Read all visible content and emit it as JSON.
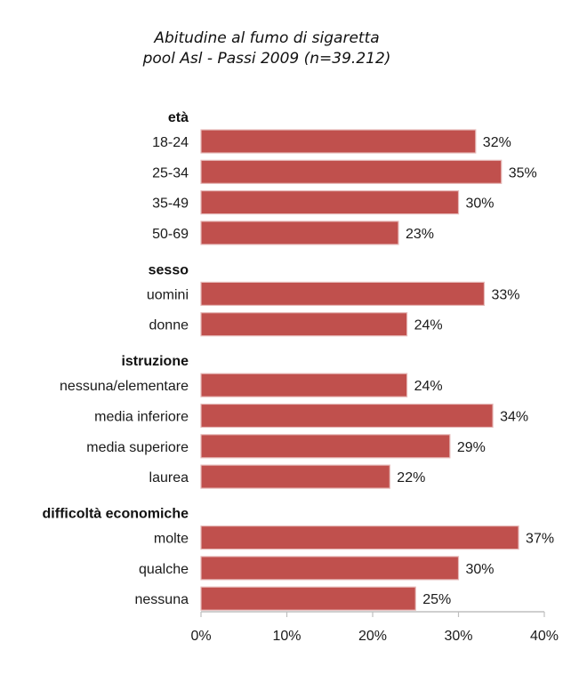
{
  "chart_data": {
    "type": "bar",
    "orientation": "horizontal",
    "title": "Abitudine al fumo di sigaretta",
    "subtitle": "pool Asl - Passi 2009 (n=39.212)",
    "xlabel": "",
    "ylabel": "",
    "xlim": [
      0,
      40
    ],
    "xticks": [
      "0%",
      "10%",
      "20%",
      "30%",
      "40%"
    ],
    "xtick_values": [
      0,
      10,
      20,
      30,
      40
    ],
    "grid": false,
    "legend": "none",
    "bar_color": "#C0504D",
    "bar_border_color": "#E6B9B8",
    "groups": [
      {
        "name": "età",
        "categories": [
          "18-24",
          "25-34",
          "35-49",
          "50-69"
        ],
        "values": [
          32,
          35,
          30,
          23
        ],
        "labels": [
          "32%",
          "35%",
          "30%",
          "23%"
        ]
      },
      {
        "name": "sesso",
        "categories": [
          "uomini",
          "donne"
        ],
        "values": [
          33,
          24
        ],
        "labels": [
          "33%",
          "24%"
        ]
      },
      {
        "name": "istruzione",
        "categories": [
          "nessuna/elementare",
          "media inferiore",
          "media superiore",
          "laurea"
        ],
        "values": [
          24,
          34,
          29,
          22
        ],
        "labels": [
          "24%",
          "34%",
          "29%",
          "22%"
        ]
      },
      {
        "name": "difficoltà economiche",
        "categories": [
          "molte",
          "qualche",
          "nessuna"
        ],
        "values": [
          37,
          30,
          25
        ],
        "labels": [
          "37%",
          "30%",
          "25%"
        ]
      }
    ]
  }
}
